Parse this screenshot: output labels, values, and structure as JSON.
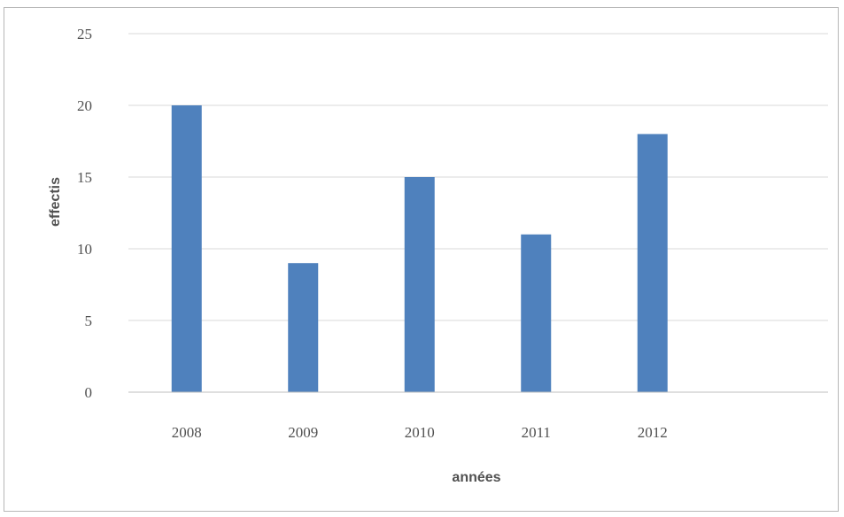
{
  "chart_data": {
    "type": "bar",
    "categories": [
      "2008",
      "2009",
      "2010",
      "2011",
      "2012"
    ],
    "values": [
      20,
      9,
      15,
      11,
      18
    ],
    "title": "",
    "xlabel": "années",
    "ylabel": "effectis",
    "ylim": [
      0,
      25
    ],
    "yticks": [
      0,
      5,
      10,
      15,
      20,
      25
    ],
    "grid": true,
    "legend": "none",
    "colors": {
      "bar": "#4f81bd",
      "grid": "#d9d9d9",
      "axis": "#bfbfbf"
    }
  }
}
